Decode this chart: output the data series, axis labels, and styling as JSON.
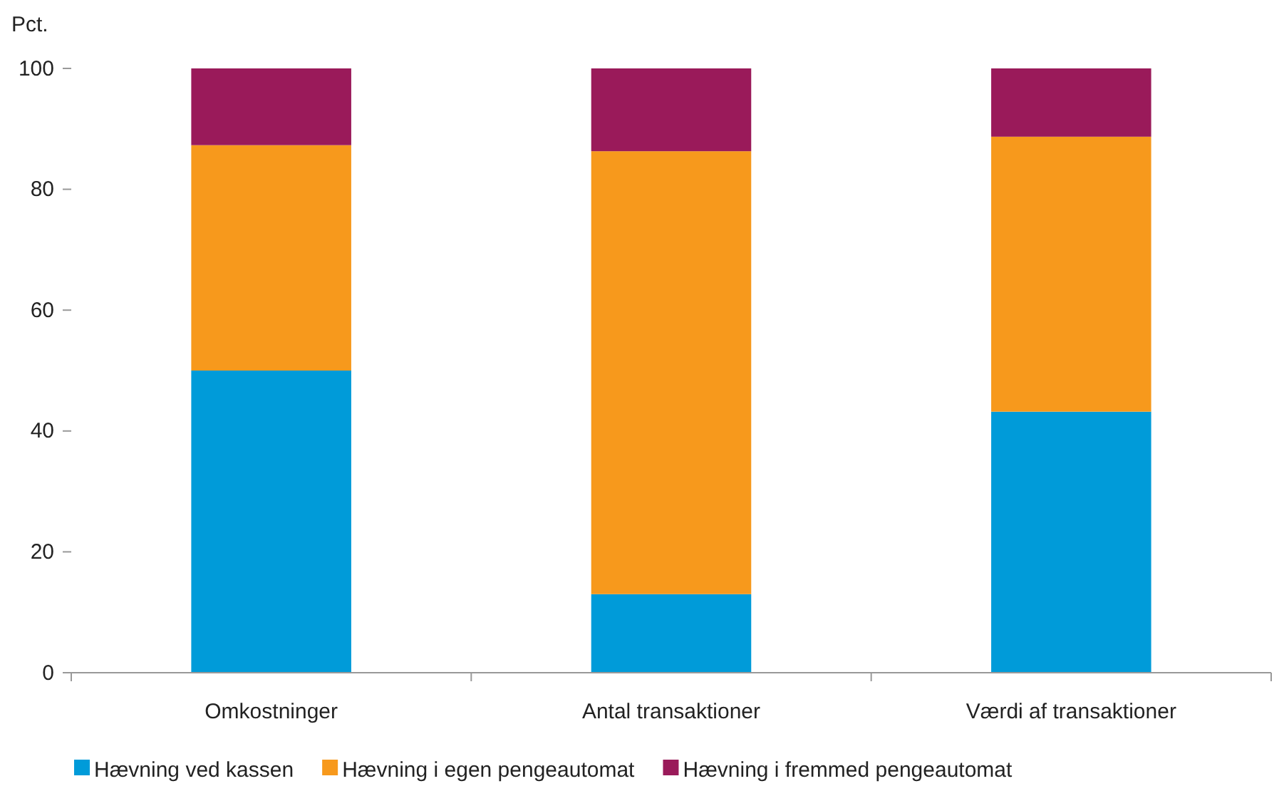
{
  "chart_data": {
    "type": "bar",
    "stacked": true,
    "ylabel": "Pct.",
    "categories": [
      "Omkostninger",
      "Antal transaktioner",
      "Værdi af transaktioner"
    ],
    "series": [
      {
        "name": "Hævning ved kassen",
        "color": "#009bd9",
        "values": [
          50.0,
          13.0,
          43.2
        ]
      },
      {
        "name": "Hævning i egen pengeautomat",
        "color": "#f7991c",
        "values": [
          37.3,
          73.3,
          45.5
        ]
      },
      {
        "name": "Hævning i fremmed pengeautomat",
        "color": "#9a1a5a",
        "values": [
          12.7,
          13.7,
          11.3
        ]
      }
    ],
    "ylim": [
      0,
      100
    ],
    "yticks": [
      0,
      20,
      40,
      60,
      80,
      100
    ],
    "grid": false,
    "legend": "bottom"
  }
}
